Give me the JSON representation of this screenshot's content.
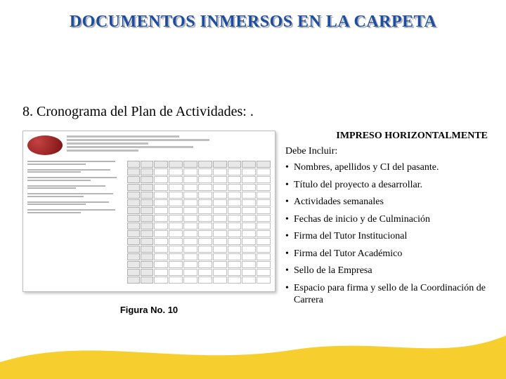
{
  "title": {
    "text": "DOCUMENTOS INMERSOS EN LA CARPETA",
    "color": "#1c4da1",
    "shadow_color": "#b3b3b3",
    "fontsize": 24
  },
  "section_heading": "8. Cronograma del Plan de Actividades: .",
  "figure_caption": "Figura No. 10",
  "printed_note": "IMPRESO HORIZONTALMENTE",
  "include_label": "Debe Incluir:",
  "bullets": [
    "Nombres, apellidos y CI del pasante.",
    "Título del proyecto a desarrollar.",
    "Actividades semanales",
    "Fechas de inicio  y de Culminación",
    "Firma del Tutor Institucional",
    "Firma del Tutor Académico",
    "Sello de la Empresa",
    "Espacio para firma y sello de la Coordinación de Carrera"
  ],
  "flag_colors": {
    "yellow": "#f6cf2f",
    "blue": "#0b3e92",
    "red": "#c5171c"
  },
  "background_color": "#ffffff"
}
